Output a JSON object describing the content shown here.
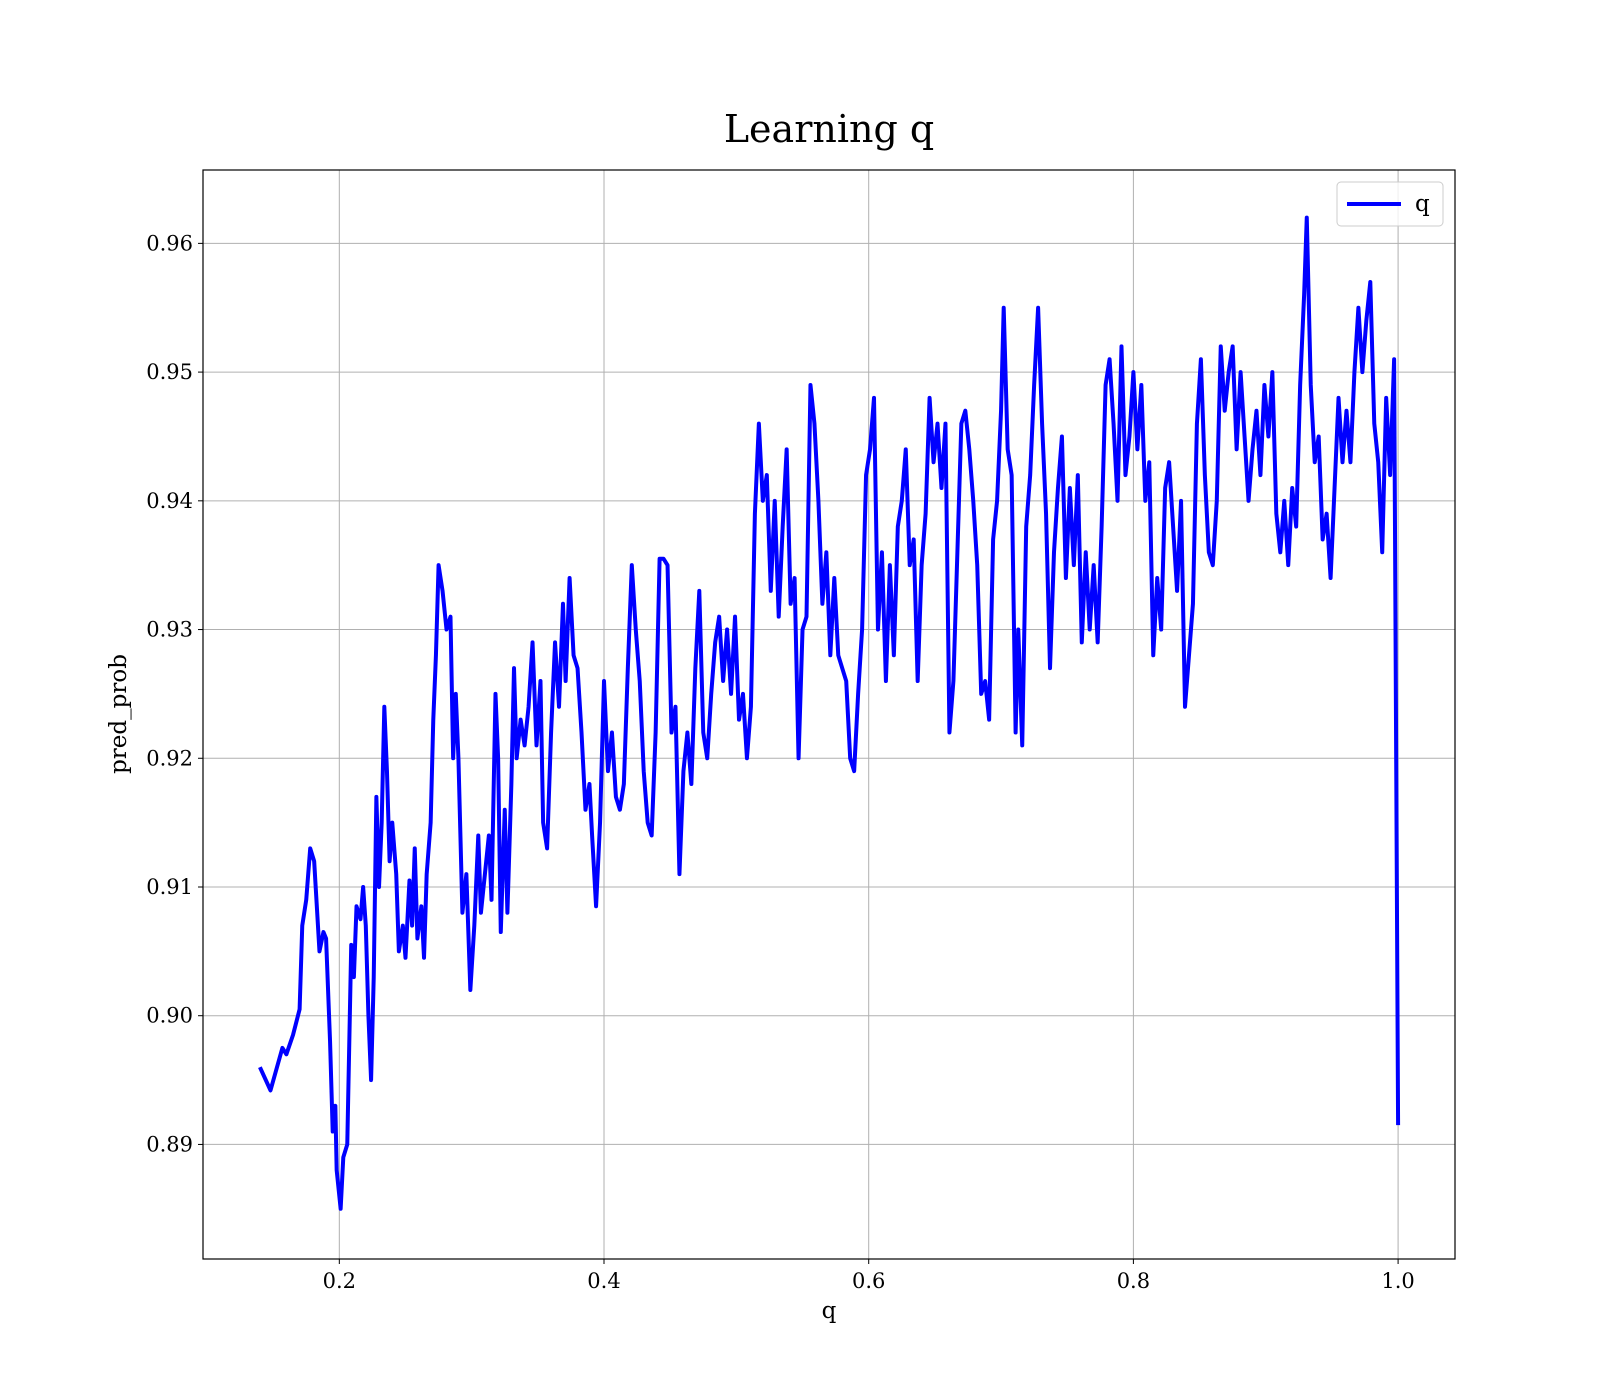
{
  "chart_data": {
    "type": "line",
    "title": "Learning q",
    "xlabel": "q",
    "ylabel": "pred_prob",
    "xlim": [
      0.097,
      1.043
    ],
    "ylim": [
      0.8811,
      0.9657
    ],
    "xticks": [
      0.2,
      0.4,
      0.6,
      0.8,
      {
        "value": 1.0,
        "label": "1.0"
      }
    ],
    "yticks": [
      0.89,
      {
        "value": 0.9,
        "label": "0.90"
      },
      0.91,
      0.92,
      0.93,
      0.94,
      0.95,
      0.96
    ],
    "grid": true,
    "legend": "upper right",
    "x": [
      0.14,
      0.148,
      0.157,
      0.16,
      0.165,
      0.17,
      0.172,
      0.175,
      0.178,
      0.181,
      0.185,
      0.188,
      0.19,
      0.193,
      0.195,
      0.197,
      0.198,
      0.201,
      0.203,
      0.206,
      0.209,
      0.211,
      0.213,
      0.216,
      0.218,
      0.22,
      0.222,
      0.224,
      0.226,
      0.228,
      0.23,
      0.232,
      0.234,
      0.236,
      0.238,
      0.24,
      0.243,
      0.245,
      0.248,
      0.25,
      0.253,
      0.255,
      0.257,
      0.259,
      0.262,
      0.264,
      0.266,
      0.269,
      0.271,
      0.273,
      0.275,
      0.278,
      0.281,
      0.284,
      0.286,
      0.288,
      0.29,
      0.293,
      0.296,
      0.299,
      0.302,
      0.305,
      0.307,
      0.31,
      0.313,
      0.315,
      0.318,
      0.32,
      0.322,
      0.325,
      0.327,
      0.33,
      0.332,
      0.334,
      0.337,
      0.34,
      0.343,
      0.346,
      0.349,
      0.352,
      0.354,
      0.357,
      0.36,
      0.363,
      0.366,
      0.369,
      0.371,
      0.374,
      0.377,
      0.38,
      0.383,
      0.386,
      0.389,
      0.391,
      0.394,
      0.397,
      0.4,
      0.403,
      0.406,
      0.409,
      0.412,
      0.415,
      0.418,
      0.421,
      0.424,
      0.427,
      0.43,
      0.433,
      0.436,
      0.439,
      0.442,
      0.445,
      0.448,
      0.451,
      0.454,
      0.457,
      0.46,
      0.463,
      0.466,
      0.469,
      0.472,
      0.475,
      0.478,
      0.481,
      0.484,
      0.487,
      0.49,
      0.493,
      0.496,
      0.499,
      0.502,
      0.505,
      0.508,
      0.511,
      0.514,
      0.517,
      0.52,
      0.523,
      0.526,
      0.529,
      0.532,
      0.535,
      0.538,
      0.541,
      0.544,
      0.547,
      0.55,
      0.553,
      0.556,
      0.559,
      0.562,
      0.565,
      0.568,
      0.571,
      0.574,
      0.577,
      0.58,
      0.583,
      0.586,
      0.589,
      0.592,
      0.595,
      0.598,
      0.601,
      0.604,
      0.607,
      0.61,
      0.613,
      0.616,
      0.619,
      0.622,
      0.625,
      0.628,
      0.631,
      0.634,
      0.637,
      0.64,
      0.643,
      0.646,
      0.649,
      0.652,
      0.655,
      0.658,
      0.661,
      0.664,
      0.667,
      0.67,
      0.673,
      0.676,
      0.679,
      0.682,
      0.685,
      0.688,
      0.691,
      0.694,
      0.697,
      0.7,
      0.702,
      0.705,
      0.708,
      0.711,
      0.713,
      0.716,
      0.719,
      0.722,
      0.725,
      0.728,
      0.731,
      0.734,
      0.737,
      0.74,
      0.743,
      0.746,
      0.749,
      0.752,
      0.755,
      0.758,
      0.761,
      0.764,
      0.767,
      0.77,
      0.773,
      0.776,
      0.779,
      0.782,
      0.785,
      0.788,
      0.791,
      0.794,
      0.797,
      0.8,
      0.803,
      0.806,
      0.809,
      0.812,
      0.815,
      0.818,
      0.821,
      0.824,
      0.827,
      0.83,
      0.833,
      0.836,
      0.839,
      0.842,
      0.845,
      0.848,
      0.851,
      0.854,
      0.857,
      0.86,
      0.863,
      0.866,
      0.869,
      0.872,
      0.875,
      0.878,
      0.881,
      0.884,
      0.887,
      0.89,
      0.893,
      0.896,
      0.899,
      0.902,
      0.905,
      0.908,
      0.911,
      0.914,
      0.917,
      0.92,
      0.923,
      0.926,
      0.929,
      0.931,
      0.934,
      0.937,
      0.94,
      0.943,
      0.946,
      0.949,
      0.952,
      0.955,
      0.958,
      0.961,
      0.964,
      0.967,
      0.97,
      0.973,
      0.976,
      0.979,
      0.982,
      0.985,
      0.988,
      0.991,
      0.994,
      0.997,
      1.0
    ],
    "series": [
      {
        "name": "q",
        "color": "#0000ff",
        "values": [
          0.896,
          0.8942,
          0.8975,
          0.897,
          0.8985,
          0.9005,
          0.907,
          0.909,
          0.913,
          0.912,
          0.905,
          0.9065,
          0.906,
          0.898,
          0.891,
          0.893,
          0.888,
          0.885,
          0.889,
          0.89,
          0.9055,
          0.903,
          0.9085,
          0.9075,
          0.91,
          0.907,
          0.9,
          0.895,
          0.903,
          0.917,
          0.91,
          0.915,
          0.924,
          0.919,
          0.912,
          0.915,
          0.911,
          0.905,
          0.907,
          0.9045,
          0.9105,
          0.907,
          0.913,
          0.906,
          0.9085,
          0.9045,
          0.911,
          0.915,
          0.923,
          0.928,
          0.935,
          0.933,
          0.93,
          0.931,
          0.92,
          0.925,
          0.92,
          0.908,
          0.911,
          0.902,
          0.907,
          0.914,
          0.908,
          0.911,
          0.914,
          0.909,
          0.925,
          0.92,
          0.9065,
          0.916,
          0.908,
          0.918,
          0.927,
          0.92,
          0.923,
          0.921,
          0.924,
          0.929,
          0.921,
          0.926,
          0.915,
          0.913,
          0.922,
          0.929,
          0.924,
          0.932,
          0.926,
          0.934,
          0.928,
          0.927,
          0.922,
          0.916,
          0.918,
          0.914,
          0.9085,
          0.915,
          0.926,
          0.919,
          0.922,
          0.917,
          0.916,
          0.918,
          0.927,
          0.935,
          0.93,
          0.926,
          0.919,
          0.915,
          0.914,
          0.922,
          0.9355,
          0.9355,
          0.935,
          0.922,
          0.924,
          0.911,
          0.919,
          0.922,
          0.918,
          0.927,
          0.933,
          0.922,
          0.92,
          0.925,
          0.929,
          0.931,
          0.926,
          0.93,
          0.925,
          0.931,
          0.923,
          0.925,
          0.92,
          0.924,
          0.939,
          0.946,
          0.94,
          0.942,
          0.933,
          0.94,
          0.931,
          0.938,
          0.944,
          0.932,
          0.934,
          0.92,
          0.93,
          0.931,
          0.949,
          0.946,
          0.94,
          0.932,
          0.936,
          0.928,
          0.934,
          0.928,
          0.927,
          0.926,
          0.92,
          0.919,
          0.925,
          0.93,
          0.942,
          0.944,
          0.948,
          0.93,
          0.936,
          0.926,
          0.935,
          0.928,
          0.938,
          0.94,
          0.944,
          0.935,
          0.937,
          0.926,
          0.935,
          0.939,
          0.948,
          0.943,
          0.946,
          0.941,
          0.946,
          0.922,
          0.926,
          0.936,
          0.946,
          0.947,
          0.944,
          0.94,
          0.935,
          0.925,
          0.926,
          0.923,
          0.937,
          0.94,
          0.947,
          0.955,
          0.944,
          0.942,
          0.922,
          0.93,
          0.921,
          0.938,
          0.942,
          0.949,
          0.955,
          0.946,
          0.939,
          0.927,
          0.936,
          0.941,
          0.945,
          0.934,
          0.941,
          0.935,
          0.942,
          0.929,
          0.936,
          0.93,
          0.935,
          0.929,
          0.938,
          0.949,
          0.951,
          0.946,
          0.94,
          0.952,
          0.942,
          0.945,
          0.95,
          0.944,
          0.949,
          0.94,
          0.943,
          0.928,
          0.934,
          0.93,
          0.941,
          0.943,
          0.938,
          0.933,
          0.94,
          0.924,
          0.928,
          0.932,
          0.946,
          0.951,
          0.942,
          0.936,
          0.935,
          0.94,
          0.952,
          0.947,
          0.95,
          0.952,
          0.944,
          0.95,
          0.945,
          0.94,
          0.944,
          0.947,
          0.942,
          0.949,
          0.945,
          0.95,
          0.939,
          0.936,
          0.94,
          0.935,
          0.941,
          0.938,
          0.949,
          0.956,
          0.962,
          0.949,
          0.943,
          0.945,
          0.937,
          0.939,
          0.934,
          0.941,
          0.948,
          0.943,
          0.947,
          0.943,
          0.95,
          0.955,
          0.95,
          0.954,
          0.957,
          0.946,
          0.943,
          0.936,
          0.948,
          0.942,
          0.951,
          0.8915
        ]
      }
    ]
  }
}
